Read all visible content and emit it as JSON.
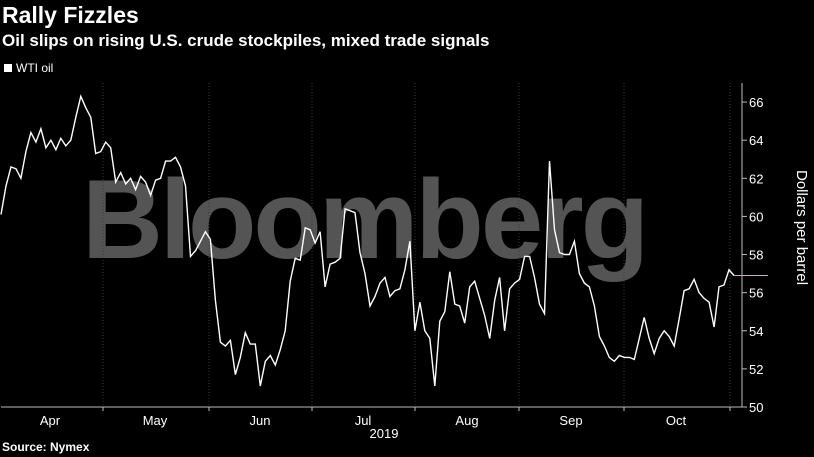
{
  "header": {
    "title": "Rally Fizzles",
    "subtitle": "Oil slips on rising U.S. crude stockpiles, mixed trade signals"
  },
  "source": "Source: Nymex",
  "watermark": "Bloomberg",
  "colors": {
    "background": "#000000",
    "line": "#ffffff",
    "last_value_marker": "#f5a66a"
  },
  "chart_data": {
    "type": "line",
    "title": "Rally Fizzles",
    "subtitle": "Oil slips on rising U.S. crude stockpiles, mixed trade signals",
    "ylabel": "Dollars per barrel",
    "xlabel": "2019",
    "ylim": [
      50,
      67
    ],
    "yticks": [
      50,
      52,
      54,
      56,
      58,
      60,
      62,
      64,
      66
    ],
    "x_tick_labels": [
      "Apr",
      "May",
      "Jun",
      "Jul",
      "Aug",
      "Sep",
      "Oct"
    ],
    "legend_position": "top-left",
    "grid": false,
    "series": [
      {
        "name": "WTI oil",
        "values": [
          60.1,
          61.6,
          62.6,
          62.5,
          62.0,
          63.4,
          64.4,
          63.9,
          64.6,
          63.6,
          64.0,
          63.5,
          64.1,
          63.7,
          64.0,
          65.2,
          66.3,
          65.7,
          65.2,
          63.3,
          63.4,
          63.9,
          63.6,
          61.8,
          62.3,
          61.7,
          62.0,
          61.4,
          62.1,
          61.8,
          61.1,
          61.9,
          62.0,
          62.9,
          62.9,
          63.1,
          62.6,
          61.6,
          57.9,
          58.2,
          58.7,
          59.2,
          58.8,
          55.6,
          53.4,
          53.2,
          53.5,
          51.7,
          52.6,
          53.9,
          53.3,
          53.3,
          51.1,
          52.4,
          52.7,
          52.2,
          53.0,
          54.0,
          56.6,
          57.8,
          57.7,
          59.4,
          59.3,
          58.6,
          59.2,
          56.3,
          57.5,
          57.6,
          57.8,
          60.4,
          60.3,
          60.2,
          58.1,
          57.0,
          55.3,
          55.8,
          56.5,
          56.8,
          55.8,
          56.1,
          56.2,
          57.2,
          58.7,
          54.0,
          55.5,
          54.0,
          53.6,
          51.1,
          54.5,
          55.0,
          57.1,
          55.4,
          55.3,
          54.4,
          56.3,
          56.6,
          55.7,
          54.8,
          53.6,
          55.6,
          56.8,
          54.0,
          56.2,
          56.5,
          56.7,
          57.9,
          57.9,
          56.8,
          55.4,
          54.9,
          62.9,
          59.3,
          58.1,
          58.0,
          58.0,
          58.7,
          57.0,
          56.5,
          56.3,
          55.3,
          53.7,
          53.2,
          52.6,
          52.4,
          52.7,
          52.6,
          52.6,
          52.5,
          53.6,
          54.7,
          53.6,
          52.8,
          53.6,
          54.0,
          53.7,
          53.2,
          54.6,
          56.1,
          56.2,
          56.7,
          56.0,
          55.7,
          55.5,
          54.2,
          56.3,
          56.4,
          57.2,
          56.9
        ]
      }
    ],
    "last_value": 56.9
  }
}
